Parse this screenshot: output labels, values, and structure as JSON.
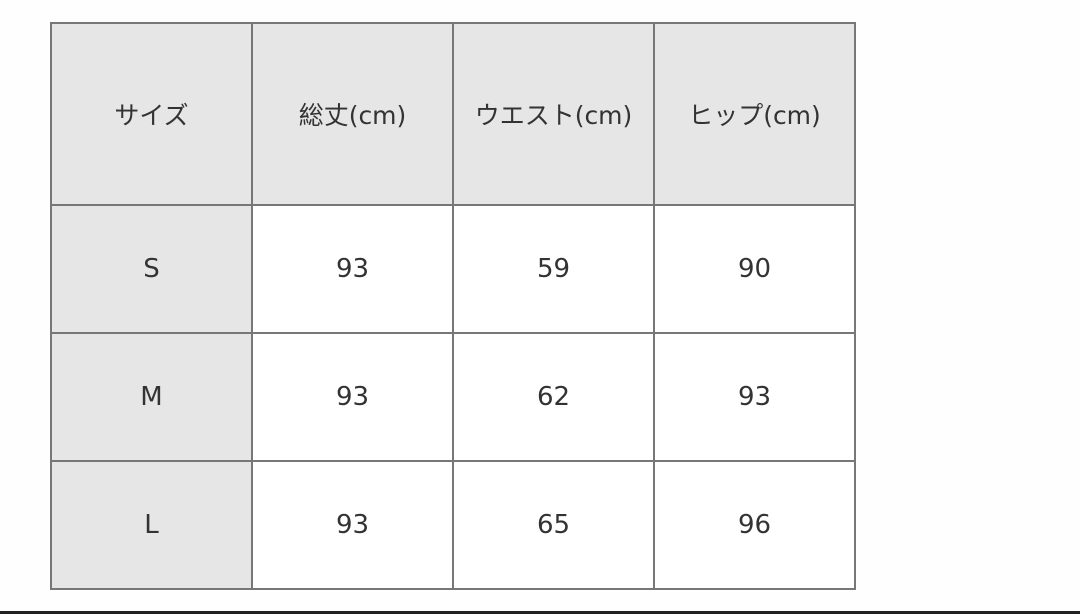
{
  "table": {
    "headers": [
      "サイズ",
      "総丈(cm)",
      "ウエスト(cm)",
      "ヒップ(cm)"
    ],
    "rows": [
      [
        "S",
        "93",
        "59",
        "90"
      ],
      [
        "M",
        "93",
        "62",
        "93"
      ],
      [
        "L",
        "93",
        "65",
        "96"
      ]
    ]
  },
  "colors": {
    "header_bg": "#e6e6e6",
    "border": "#777777",
    "text": "#333333"
  }
}
